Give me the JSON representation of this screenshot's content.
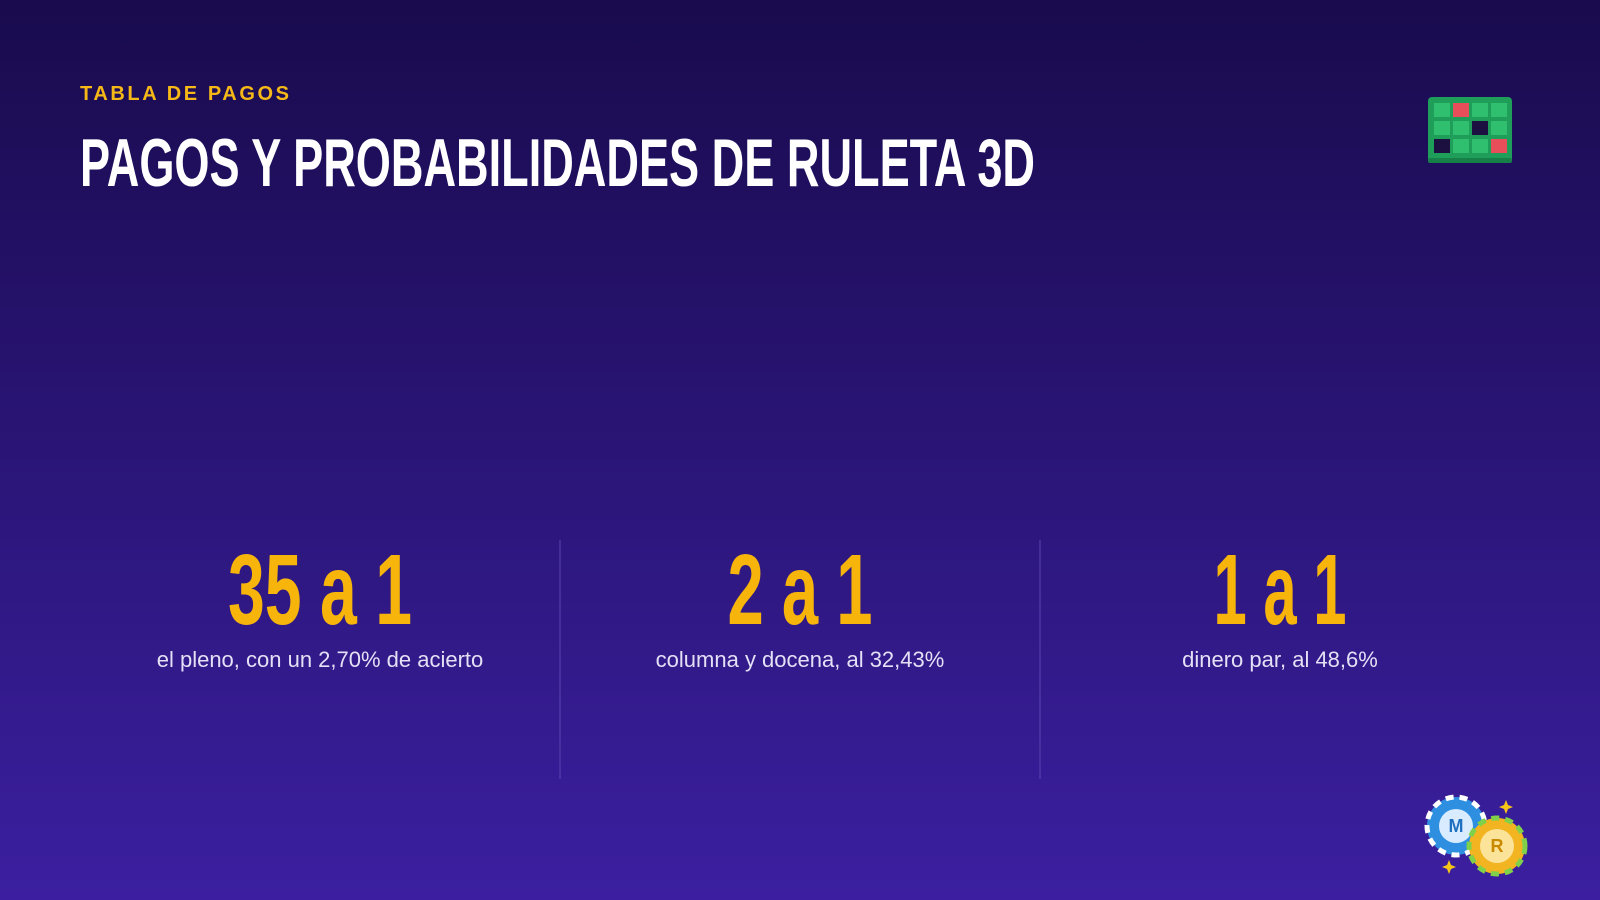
{
  "header": {
    "eyebrow": "TABLA DE PAGOS",
    "title": "PAGOS Y PROBABILIDADES DE RULETA 3D"
  },
  "stats": [
    {
      "value": "35 a 1",
      "caption": "el pleno, con un 2,70% de acierto"
    },
    {
      "value": "2 a 1",
      "caption": "columna y docena, al 32,43%"
    },
    {
      "value": "1 a 1",
      "caption": "dinero par, al 48,6%"
    }
  ],
  "badge": {
    "letters": [
      "M",
      "R"
    ]
  }
}
